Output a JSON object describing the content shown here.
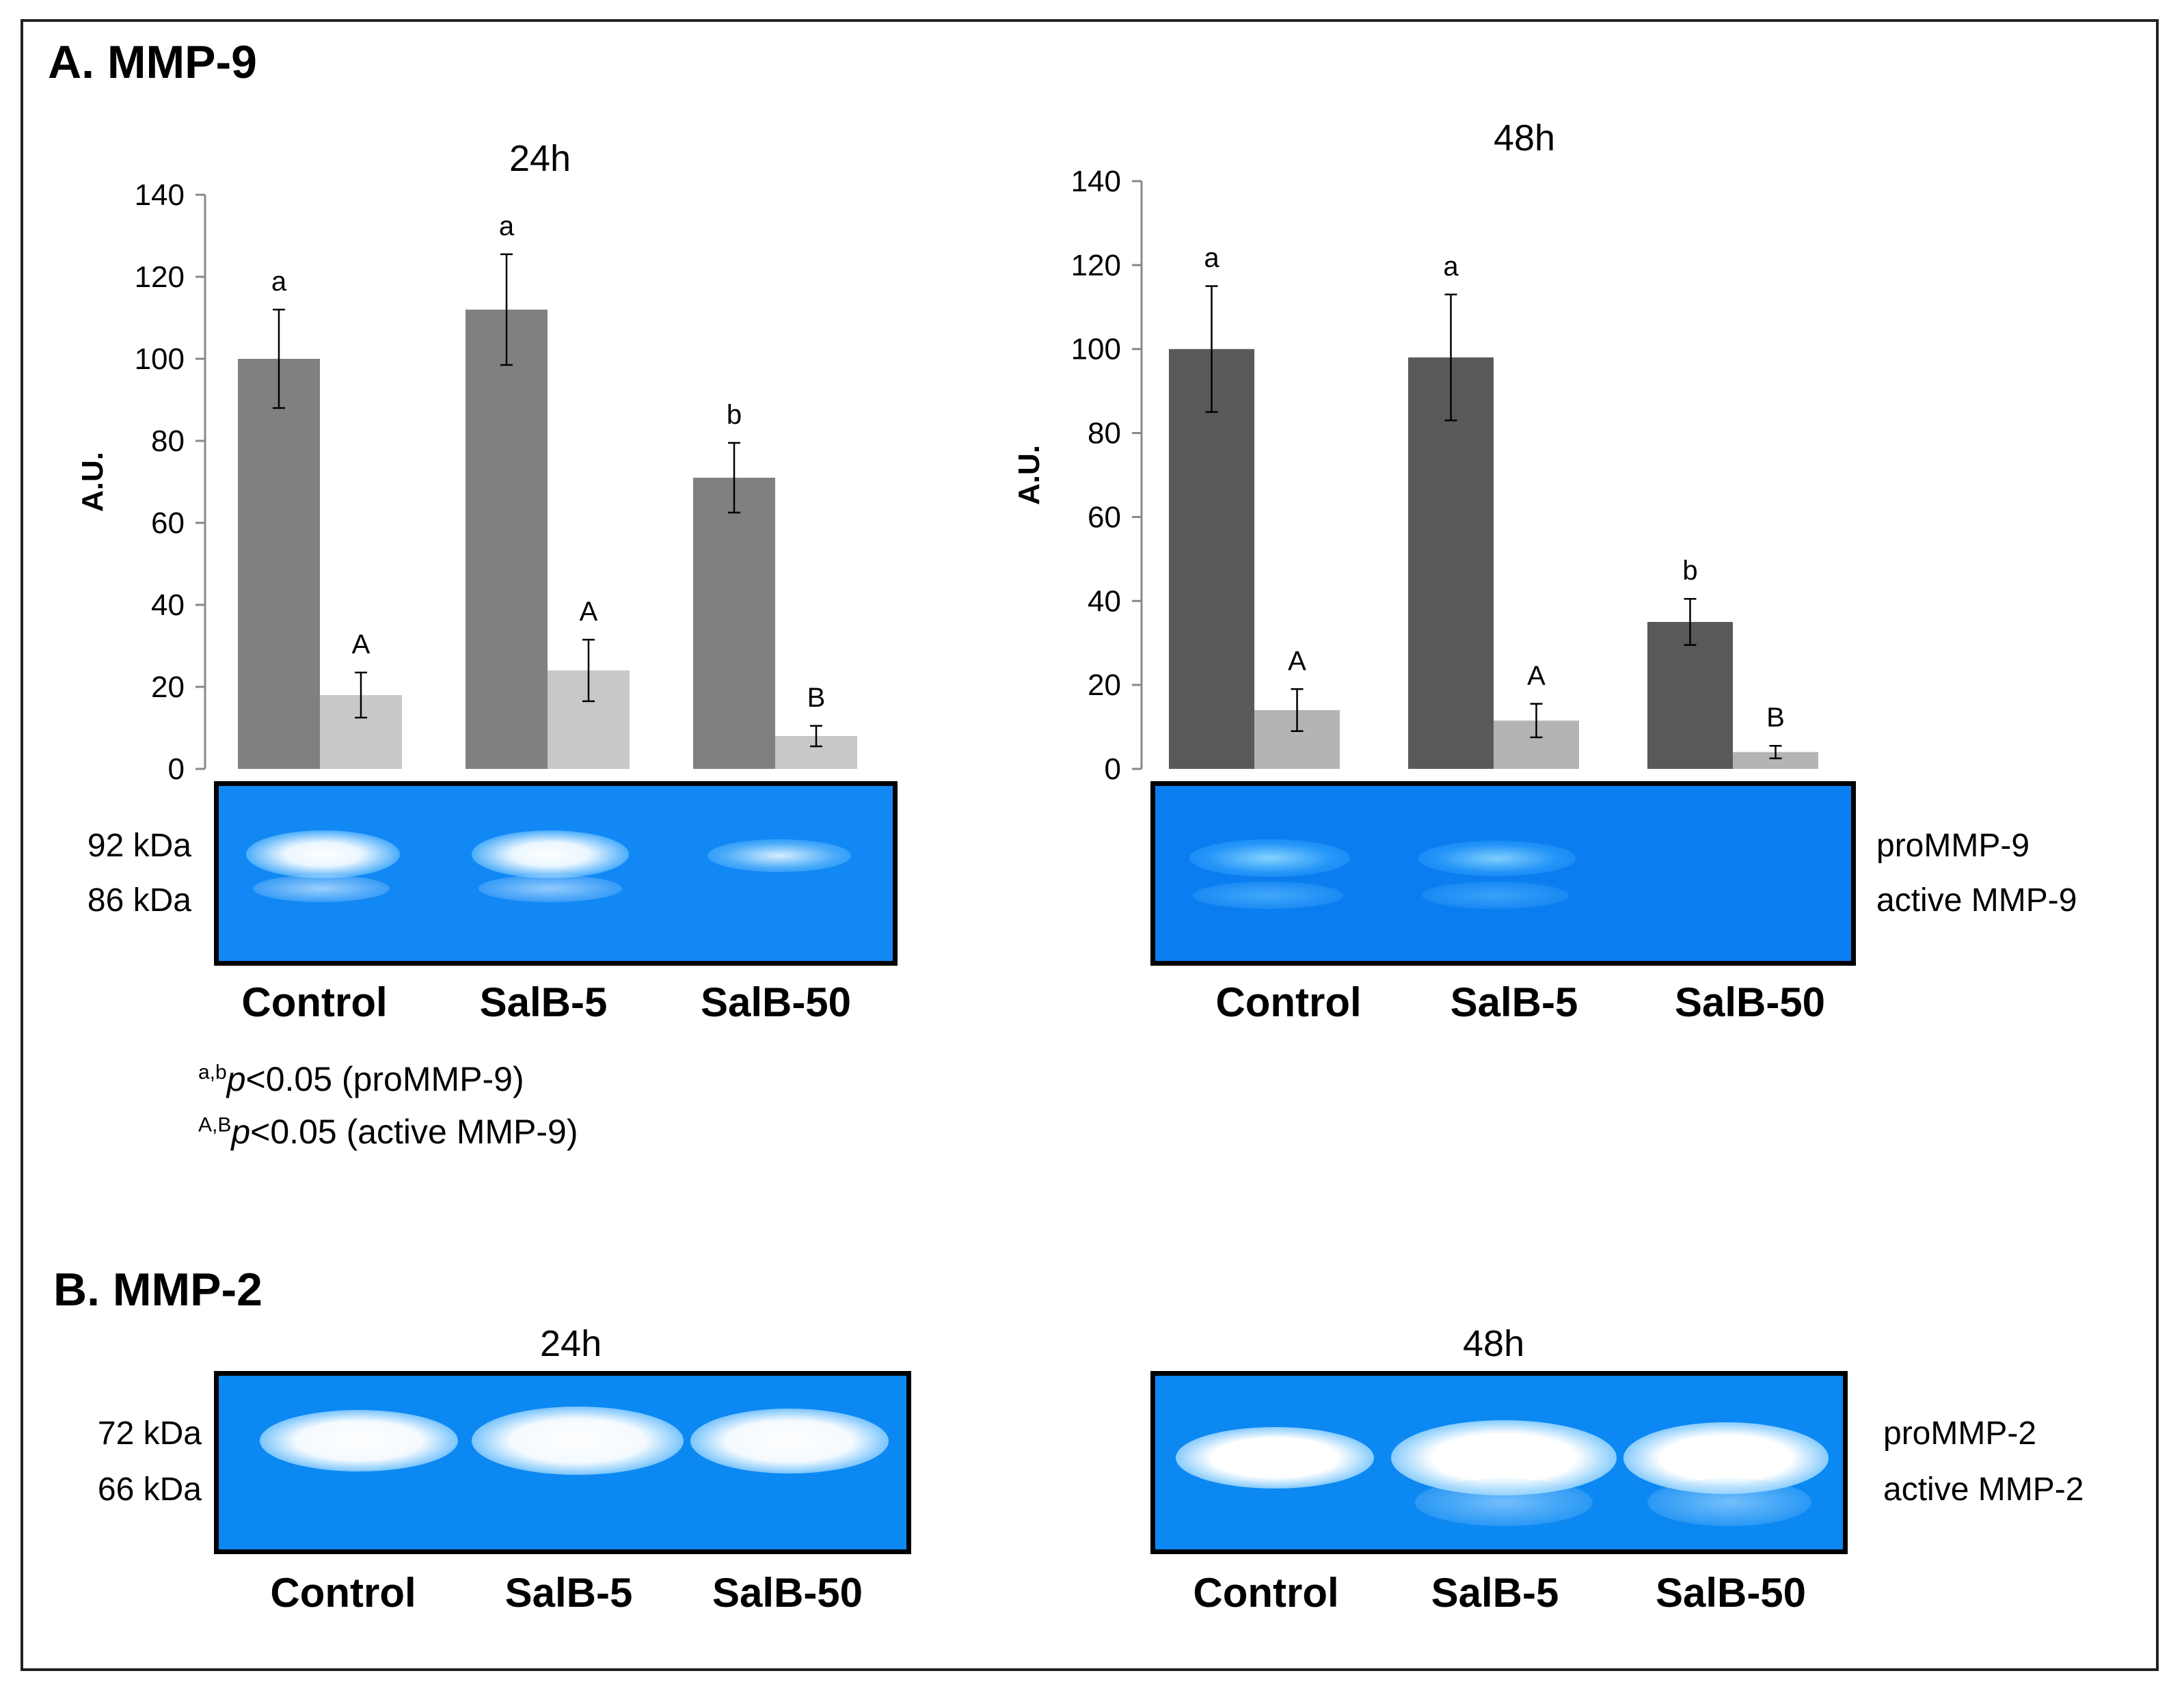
{
  "panel_a": {
    "title": "A. MMP-9"
  },
  "panel_b": {
    "title": "B. MMP-2"
  },
  "chart_data": [
    {
      "type": "bar",
      "title": "24h",
      "ylabel": "A.U.",
      "ylim": [
        0,
        140
      ],
      "yticks": [
        0,
        20,
        40,
        60,
        80,
        100,
        120,
        140
      ],
      "categories": [
        "Control",
        "SalB-5",
        "SalB-50"
      ],
      "series": [
        {
          "name": "proMMP-9",
          "color": "#808080",
          "values": [
            100,
            112,
            71
          ],
          "errors": [
            12,
            13.5,
            8.5
          ],
          "labels": [
            "a",
            "a",
            "b"
          ]
        },
        {
          "name": "active MMP-9",
          "color": "#c8c8c8",
          "values": [
            18,
            24,
            8
          ],
          "errors": [
            5.5,
            7.5,
            2.5
          ],
          "labels": [
            "A",
            "A",
            "B"
          ]
        }
      ]
    },
    {
      "type": "bar",
      "title": "48h",
      "ylabel": "A.U.",
      "ylim": [
        0,
        140
      ],
      "yticks": [
        0,
        20,
        40,
        60,
        80,
        100,
        120,
        140
      ],
      "categories": [
        "Control",
        "SalB-5",
        "SalB-50"
      ],
      "series": [
        {
          "name": "proMMP-9",
          "color": "#595959",
          "values": [
            100,
            98,
            35
          ],
          "errors": [
            15,
            15,
            5.5
          ],
          "labels": [
            "a",
            "a",
            "b"
          ]
        },
        {
          "name": "active MMP-9",
          "color": "#b4b4b4",
          "values": [
            14,
            11.5,
            4
          ],
          "errors": [
            5,
            4,
            1.5
          ],
          "labels": [
            "A",
            "A",
            "B"
          ]
        }
      ]
    }
  ],
  "gels": {
    "mmp9": {
      "kda_top": "92 kDa",
      "kda_bottom": "86 kDa",
      "band_top": "proMMP-9",
      "band_bottom": "active MMP-9",
      "lanes": [
        "Control",
        "SalB-5",
        "SalB-50"
      ]
    },
    "mmp2": {
      "label_24h": "24h",
      "label_48h": "48h",
      "kda_top": "72 kDa",
      "kda_bottom": "66 kDa",
      "band_top": "proMMP-2",
      "band_bottom": "active MMP-2",
      "lanes": [
        "Control",
        "SalB-5",
        "SalB-50"
      ]
    }
  },
  "footnote": {
    "sup1": "a,b",
    "p_label": "p",
    "text1": "<0.05 (proMMP-9)",
    "sup2": "A,B",
    "text2": "<0.05 (active MMP-9)"
  },
  "colors": {
    "gel_blue": "#0a86f0",
    "band_white": "#ffffff"
  }
}
